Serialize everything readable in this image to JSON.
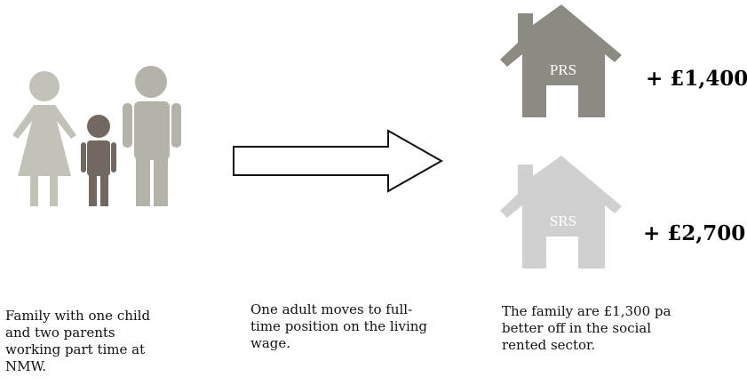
{
  "family_caption": [
    "Family with one child",
    "and two parents",
    "working part time at",
    "NMW."
  ],
  "change_caption": [
    "One adult moves to full-",
    "time position on the living",
    "wage."
  ],
  "result_caption": [
    "The family are £1,300 pa",
    "better off in the social",
    "rented sector."
  ],
  "houses": [
    {
      "label": "PRS",
      "amount": "+ £1,400"
    },
    {
      "label": "SRS",
      "amount": "+ £2,700"
    }
  ]
}
